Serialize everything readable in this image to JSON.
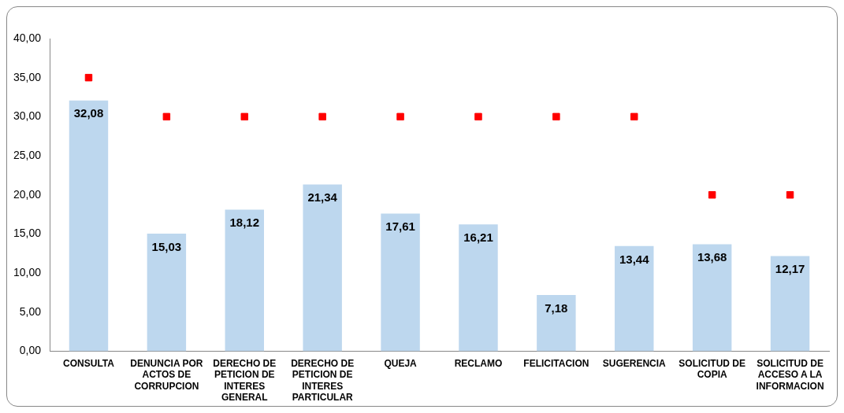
{
  "chart_data": {
    "type": "bar",
    "categories": [
      "CONSULTA",
      "DENUNCIA POR ACTOS DE CORRUPCION",
      "DERECHO DE PETICION DE INTERES GENERAL",
      "DERECHO DE PETICION DE INTERES PARTICULAR",
      "QUEJA",
      "RECLAMO",
      "FELICITACION",
      "SUGERENCIA",
      "SOLICITUD DE COPIA",
      "SOLICITUD DE ACCESO A LA INFORMACION"
    ],
    "series": [
      {
        "color": "#bdd7ee",
        "values": [
          32.08,
          15.03,
          18.12,
          21.34,
          17.61,
          16.21,
          7.18,
          13.44,
          13.68,
          12.17
        ],
        "value_labels": [
          "32,08",
          "15,03",
          "18,12",
          "21,34",
          "17,61",
          "16,21",
          "7,18",
          "13,44",
          "13,68",
          "12,17"
        ]
      },
      {
        "type": "scatter",
        "color": "#ff0000",
        "marker": "square",
        "x": [
          "CONSULTA",
          "DENUNCIA POR ACTOS DE CORRUPCION",
          "DERECHO DE PETICION DE INTERES GENERAL",
          "DERECHO DE PETICION DE INTERES PARTICULAR",
          "QUEJA",
          "RECLAMO",
          "FELICITACION",
          "SUGERENCIA",
          "SOLICITUD DE COPIA",
          "SOLICITUD DE ACCESO A LA INFORMACION"
        ],
        "values": [
          35,
          30,
          30,
          30,
          30,
          30,
          30,
          30,
          20,
          20
        ]
      }
    ],
    "ylim": [
      0,
      40
    ],
    "yticks": [
      {
        "value": 0,
        "label": "0,00"
      },
      {
        "value": 5,
        "label": "5,00"
      },
      {
        "value": 10,
        "label": "10,00"
      },
      {
        "value": 15,
        "label": "15,00"
      },
      {
        "value": 20,
        "label": "20,00"
      },
      {
        "value": 25,
        "label": "25,00"
      },
      {
        "value": 30,
        "label": "30,00"
      },
      {
        "value": 35,
        "label": "35,00"
      },
      {
        "value": 40,
        "label": "40,00"
      }
    ],
    "grid": false,
    "legend": false
  }
}
